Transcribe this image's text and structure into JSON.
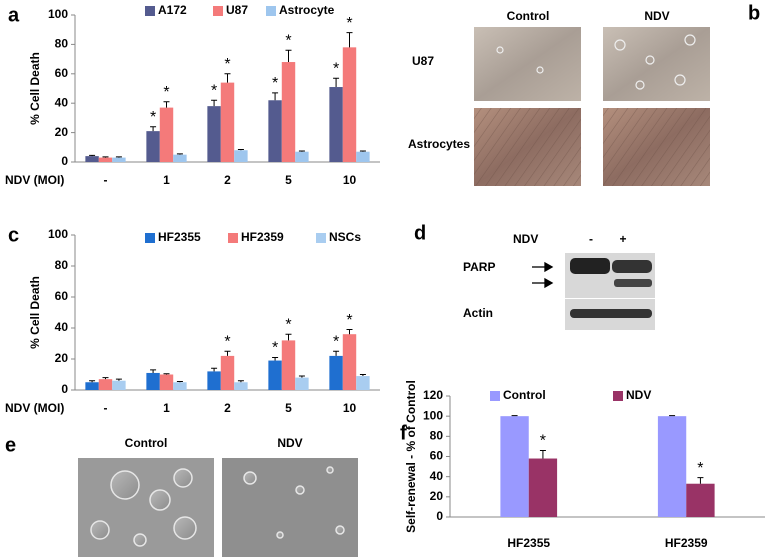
{
  "chart_data": [
    {
      "type": "bar",
      "panel": "a",
      "ylabel": "% Cell Death",
      "xlabel": "NDV (MOI)",
      "categories": [
        "-",
        "1",
        "2",
        "5",
        "10"
      ],
      "ylim": [
        0,
        100
      ],
      "yticks": [
        0,
        20,
        40,
        60,
        80,
        100
      ],
      "series": [
        {
          "name": "A172",
          "color": "#545b8f",
          "values": [
            4,
            21,
            38,
            42,
            51
          ],
          "errors": [
            0.5,
            3,
            4,
            5,
            6
          ],
          "annotations": [
            null,
            "*",
            "*",
            "*",
            "*"
          ]
        },
        {
          "name": "U87",
          "color": "#f47a7a",
          "values": [
            3,
            37,
            54,
            68,
            78
          ],
          "errors": [
            0.5,
            4,
            6,
            8,
            10
          ],
          "annotations": [
            null,
            "*",
            "*",
            "*",
            "*"
          ]
        },
        {
          "name": "Astrocyte",
          "color": "#9ec6ee",
          "values": [
            3,
            5,
            8,
            7,
            7
          ],
          "errors": [
            0.5,
            0.5,
            0.5,
            0.5,
            0.5
          ],
          "annotations": [
            null,
            null,
            null,
            null,
            null
          ]
        }
      ]
    },
    {
      "type": "bar",
      "panel": "c",
      "ylabel": "% Cell Death",
      "xlabel": "NDV (MOI)",
      "categories": [
        "-",
        "1",
        "2",
        "5",
        "10"
      ],
      "ylim": [
        0,
        100
      ],
      "yticks": [
        0,
        20,
        40,
        60,
        80,
        100
      ],
      "series": [
        {
          "name": "HF2355",
          "color": "#1f6fd0",
          "values": [
            5,
            11,
            12,
            19,
            22
          ],
          "errors": [
            1,
            2,
            2,
            2,
            3
          ],
          "annotations": [
            null,
            null,
            null,
            "*",
            "*"
          ]
        },
        {
          "name": "HF2359",
          "color": "#f47a7a",
          "values": [
            7,
            10,
            22,
            32,
            36
          ],
          "errors": [
            1,
            0.5,
            3,
            4,
            3
          ],
          "annotations": [
            null,
            null,
            "*",
            "*",
            "*"
          ]
        },
        {
          "name": "NSCs",
          "color": "#a9cdf0",
          "values": [
            6,
            5,
            5,
            8,
            9
          ],
          "errors": [
            1,
            0.5,
            1,
            1,
            1
          ],
          "annotations": [
            null,
            null,
            null,
            null,
            null
          ]
        }
      ]
    },
    {
      "type": "bar",
      "panel": "f",
      "ylabel": "Self-renewal - % of Control",
      "categories": [
        "HF2355",
        "HF2359"
      ],
      "ylim": [
        0,
        120
      ],
      "yticks": [
        0,
        20,
        40,
        60,
        80,
        100,
        120
      ],
      "series": [
        {
          "name": "Control",
          "color": "#9999ff",
          "values": [
            100,
            100
          ],
          "errors": [
            0.5,
            0.5
          ],
          "annotations": [
            null,
            null
          ]
        },
        {
          "name": "NDV",
          "color": "#993366",
          "values": [
            58,
            33
          ],
          "errors": [
            8,
            6
          ],
          "annotations": [
            "*",
            "*"
          ]
        }
      ]
    }
  ],
  "images": {
    "b": {
      "panel": "b",
      "columns": [
        "Control",
        "NDV"
      ],
      "rows": [
        "U87",
        "Astrocytes"
      ]
    },
    "d": {
      "panel": "d",
      "treatment": "NDV",
      "lanes": [
        "-",
        "+"
      ],
      "rows": [
        "PARP",
        "Actin"
      ]
    },
    "e": {
      "panel": "e",
      "columns": [
        "Control",
        "NDV"
      ]
    }
  }
}
